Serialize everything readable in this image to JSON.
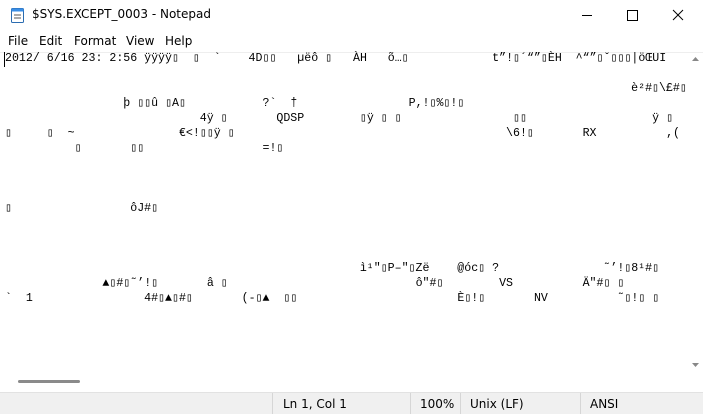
{
  "window": {
    "title": "$SYS.EXCEPT_0003 - Notepad"
  },
  "menu": [
    "File",
    "Edit",
    "Format",
    "View",
    "Help"
  ],
  "document": {
    "text": "2012/ 6/16 23: 2:56 ÿÿÿÿ▯  ▯  `    4D▯▯   µëô ▯   ÀH   õ…▯            t”!▯´“”▯ÈH  ^“”▯ˇ▯▯▯|öŒUI\n\n                                                                                          è²#▯\\£#▯\n                 þ ▯▯û ▯A▯           ?`  †                P,!▯%▯!▯\n                            4ÿ ▯       QDSP        ▯ÿ ▯ ▯                ▯▯                  ÿ ▯\n▯     ▯  ~               €<!▯▯ÿ ▯                                       \\6!▯       RX          ,(\n          ▯       ▯▯                 =!▯\n\n\n\n▯                 ôJ#▯\n\n\n\n                                                   ì¹\"▯P–\"▯Zë    @óc▯ ?               ˜’!▯8¹#▯\n              ▲▯#▯˜’!▯       â ▯                           ô\"#▯        VS          Ä\"#▯ ▯\n`  1                4#▯▲▯#▯       (-▯▲  ▯▯                       È▯!▯       NV          ˜▯!▯ ▯"
  },
  "status": {
    "position": "Ln 1, Col 1",
    "zoom": "100%",
    "line_ending": "Unix (LF)",
    "encoding": "ANSI"
  }
}
